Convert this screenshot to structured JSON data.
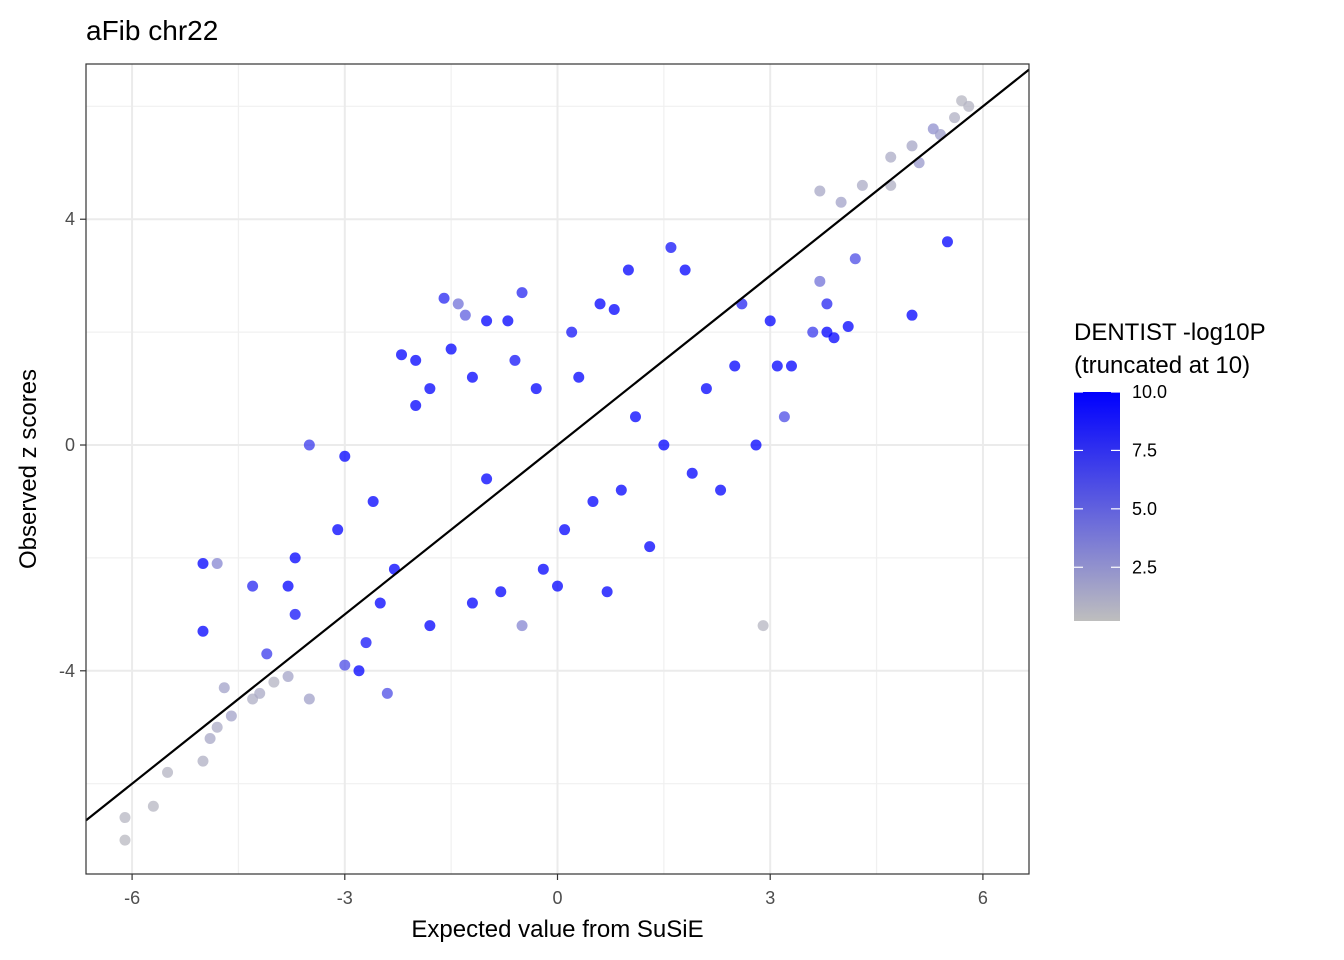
{
  "chart_data": {
    "type": "scatter",
    "title": "aFib chr22",
    "xlabel": "Expected value from SuSiE",
    "ylabel": "Observed z scores",
    "xlim": [
      -6.65,
      6.65
    ],
    "ylim": [
      -7.6,
      6.75
    ],
    "x_ticks": [
      -6,
      -3,
      0,
      3,
      6
    ],
    "x_tick_labels": [
      "-6",
      "-3",
      "0",
      "3",
      "6"
    ],
    "y_ticks": [
      -4,
      0,
      4
    ],
    "y_tick_labels": [
      "-4",
      "0",
      "4"
    ],
    "grid": true,
    "reference_line": {
      "slope": 1.0,
      "intercept": 0.0,
      "color": "#000000"
    },
    "color_scale": {
      "title_line1": "DENTIST -log10P",
      "title_line2": "(truncated at 10)",
      "min": 0,
      "max": 10,
      "low_color": "#bebebe",
      "high_color": "#0000ff",
      "ticks": [
        2.5,
        5.0,
        7.5,
        10.0
      ],
      "tick_labels": [
        "2.5",
        "5.0",
        "7.5",
        "10.0"
      ],
      "placement": "right"
    },
    "points": [
      {
        "x": -6.1,
        "y": -7.0,
        "c": 0.3
      },
      {
        "x": -6.1,
        "y": -6.6,
        "c": 0.4
      },
      {
        "x": -5.7,
        "y": -6.4,
        "c": 0.5
      },
      {
        "x": -5.5,
        "y": -5.8,
        "c": 0.6
      },
      {
        "x": -5.0,
        "y": -5.6,
        "c": 0.8
      },
      {
        "x": -4.9,
        "y": -5.2,
        "c": 1.2
      },
      {
        "x": -4.8,
        "y": -5.0,
        "c": 1.0
      },
      {
        "x": -4.6,
        "y": -4.8,
        "c": 1.5
      },
      {
        "x": -4.3,
        "y": -4.5,
        "c": 0.9
      },
      {
        "x": -4.2,
        "y": -4.4,
        "c": 1.1
      },
      {
        "x": -3.8,
        "y": -4.1,
        "c": 1.4
      },
      {
        "x": -4.0,
        "y": -4.2,
        "c": 0.6
      },
      {
        "x": -5.0,
        "y": -2.1,
        "c": 10
      },
      {
        "x": -4.8,
        "y": -2.1,
        "c": 3.0
      },
      {
        "x": -5.0,
        "y": -3.3,
        "c": 10
      },
      {
        "x": -4.7,
        "y": -4.3,
        "c": 1.5
      },
      {
        "x": -4.3,
        "y": -2.5,
        "c": 8.0
      },
      {
        "x": -4.1,
        "y": -3.7,
        "c": 7.0
      },
      {
        "x": -3.8,
        "y": -2.5,
        "c": 10
      },
      {
        "x": -3.7,
        "y": -2.0,
        "c": 10
      },
      {
        "x": -3.7,
        "y": -3.0,
        "c": 9.0
      },
      {
        "x": -3.5,
        "y": -4.5,
        "c": 1.6
      },
      {
        "x": -3.5,
        "y": 0.0,
        "c": 7.0
      },
      {
        "x": -3.1,
        "y": -1.5,
        "c": 10
      },
      {
        "x": -3.0,
        "y": -0.2,
        "c": 10
      },
      {
        "x": -3.0,
        "y": -3.9,
        "c": 6.0
      },
      {
        "x": -2.8,
        "y": -4.0,
        "c": 10
      },
      {
        "x": -2.7,
        "y": -3.5,
        "c": 9.0
      },
      {
        "x": -2.6,
        "y": -1.0,
        "c": 10
      },
      {
        "x": -2.5,
        "y": -2.8,
        "c": 10
      },
      {
        "x": -2.4,
        "y": -4.4,
        "c": 6.0
      },
      {
        "x": -2.3,
        "y": -2.2,
        "c": 10
      },
      {
        "x": -2.2,
        "y": 1.6,
        "c": 10
      },
      {
        "x": -2.0,
        "y": 1.5,
        "c": 10
      },
      {
        "x": -2.0,
        "y": 0.7,
        "c": 10
      },
      {
        "x": -1.8,
        "y": 1.0,
        "c": 10
      },
      {
        "x": -1.8,
        "y": -3.2,
        "c": 10
      },
      {
        "x": -1.6,
        "y": 2.6,
        "c": 8.0
      },
      {
        "x": -1.5,
        "y": 1.7,
        "c": 10
      },
      {
        "x": -1.4,
        "y": 2.5,
        "c": 4.0
      },
      {
        "x": -1.3,
        "y": 2.3,
        "c": 5.0
      },
      {
        "x": -1.2,
        "y": 1.2,
        "c": 10
      },
      {
        "x": -1.2,
        "y": -2.8,
        "c": 10
      },
      {
        "x": -1.0,
        "y": 2.2,
        "c": 10
      },
      {
        "x": -1.0,
        "y": -0.6,
        "c": 10
      },
      {
        "x": -0.8,
        "y": -2.6,
        "c": 10
      },
      {
        "x": -0.7,
        "y": 2.2,
        "c": 10
      },
      {
        "x": -0.6,
        "y": 1.5,
        "c": 9.0
      },
      {
        "x": -0.5,
        "y": -3.2,
        "c": 3.0
      },
      {
        "x": -0.5,
        "y": 2.7,
        "c": 8.0
      },
      {
        "x": -0.3,
        "y": 1.0,
        "c": 10
      },
      {
        "x": -0.2,
        "y": -2.2,
        "c": 10
      },
      {
        "x": 0.0,
        "y": -2.5,
        "c": 10
      },
      {
        "x": 0.2,
        "y": 2.0,
        "c": 9.0
      },
      {
        "x": 0.1,
        "y": -1.5,
        "c": 10
      },
      {
        "x": 0.3,
        "y": 1.2,
        "c": 10
      },
      {
        "x": 0.5,
        "y": -1.0,
        "c": 10
      },
      {
        "x": 0.6,
        "y": 2.5,
        "c": 10
      },
      {
        "x": 0.7,
        "y": -2.6,
        "c": 10
      },
      {
        "x": 0.8,
        "y": 2.4,
        "c": 10
      },
      {
        "x": 0.9,
        "y": -0.8,
        "c": 10
      },
      {
        "x": 1.0,
        "y": 3.1,
        "c": 10
      },
      {
        "x": 1.1,
        "y": 0.5,
        "c": 10
      },
      {
        "x": 1.3,
        "y": -1.8,
        "c": 10
      },
      {
        "x": 1.5,
        "y": 0.0,
        "c": 10
      },
      {
        "x": 1.6,
        "y": 3.5,
        "c": 9.0
      },
      {
        "x": 1.8,
        "y": 3.1,
        "c": 10
      },
      {
        "x": 1.9,
        "y": -0.5,
        "c": 10
      },
      {
        "x": 2.1,
        "y": 1.0,
        "c": 10
      },
      {
        "x": 2.3,
        "y": -0.8,
        "c": 10
      },
      {
        "x": 2.5,
        "y": 1.4,
        "c": 10
      },
      {
        "x": 2.6,
        "y": 2.5,
        "c": 8.0
      },
      {
        "x": 2.8,
        "y": 0.0,
        "c": 10
      },
      {
        "x": 2.9,
        "y": -3.2,
        "c": 0.5
      },
      {
        "x": 3.0,
        "y": 2.2,
        "c": 10
      },
      {
        "x": 3.1,
        "y": 1.4,
        "c": 10
      },
      {
        "x": 3.2,
        "y": 0.5,
        "c": 6.0
      },
      {
        "x": 3.3,
        "y": 1.4,
        "c": 10
      },
      {
        "x": 3.6,
        "y": 2.0,
        "c": 7.0
      },
      {
        "x": 3.7,
        "y": 2.9,
        "c": 4.0
      },
      {
        "x": 3.8,
        "y": 2.5,
        "c": 8.0
      },
      {
        "x": 3.8,
        "y": 2.0,
        "c": 10
      },
      {
        "x": 3.9,
        "y": 1.9,
        "c": 10
      },
      {
        "x": 4.1,
        "y": 2.1,
        "c": 10
      },
      {
        "x": 4.2,
        "y": 3.3,
        "c": 6.0
      },
      {
        "x": 4.3,
        "y": 4.6,
        "c": 1.0
      },
      {
        "x": 4.0,
        "y": 4.3,
        "c": 1.5
      },
      {
        "x": 3.7,
        "y": 4.5,
        "c": 1.2
      },
      {
        "x": 4.7,
        "y": 4.6,
        "c": 0.8
      },
      {
        "x": 4.7,
        "y": 5.1,
        "c": 1.0
      },
      {
        "x": 5.0,
        "y": 5.3,
        "c": 1.3
      },
      {
        "x": 5.0,
        "y": 2.3,
        "c": 10
      },
      {
        "x": 5.1,
        "y": 5.0,
        "c": 2.0
      },
      {
        "x": 5.3,
        "y": 5.6,
        "c": 2.5
      },
      {
        "x": 5.4,
        "y": 5.5,
        "c": 1.8
      },
      {
        "x": 5.5,
        "y": 3.6,
        "c": 10
      },
      {
        "x": 5.6,
        "y": 5.8,
        "c": 0.8
      },
      {
        "x": 5.7,
        "y": 6.1,
        "c": 0.5
      },
      {
        "x": 5.8,
        "y": 6.0,
        "c": 0.6
      }
    ]
  }
}
